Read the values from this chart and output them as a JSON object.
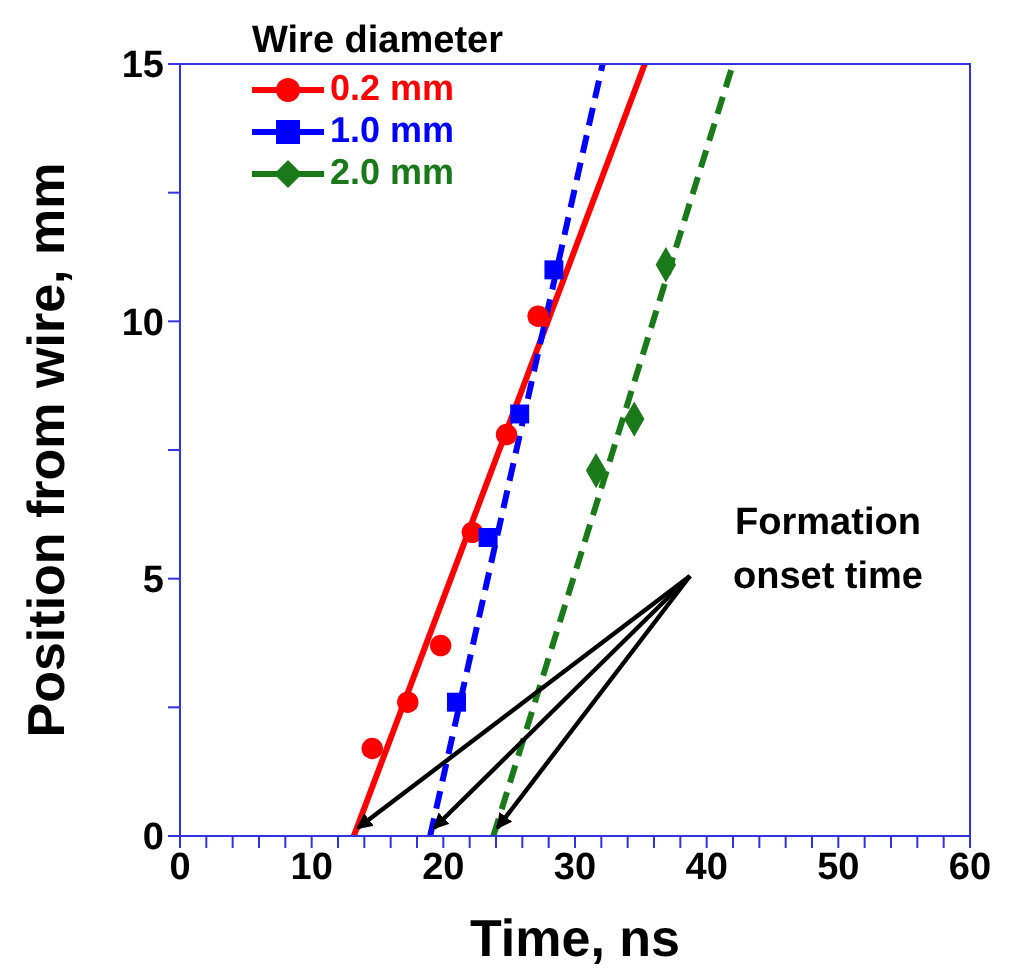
{
  "chart_data": {
    "type": "scatter",
    "xlabel": "Time, ns",
    "ylabel": "Position from wire, mm",
    "legend_title": "Wire diameter",
    "xlim": [
      0,
      60
    ],
    "xticks": [
      0,
      {
        "value": 2,
        "label": null
      },
      {
        "value": 4,
        "label": null
      },
      {
        "value": 6,
        "label": null
      },
      {
        "value": 8,
        "label": null
      },
      10,
      {
        "value": 12,
        "label": null
      },
      {
        "value": 14,
        "label": null
      },
      {
        "value": 16,
        "label": null
      },
      {
        "value": 18,
        "label": null
      },
      20,
      {
        "value": 22,
        "label": null
      },
      {
        "value": 24,
        "label": null
      },
      {
        "value": 26,
        "label": null
      },
      {
        "value": 28,
        "label": null
      },
      30,
      {
        "value": 32,
        "label": null
      },
      {
        "value": 34,
        "label": null
      },
      {
        "value": 36,
        "label": null
      },
      {
        "value": 38,
        "label": null
      },
      40,
      {
        "value": 42,
        "label": null
      },
      {
        "value": 44,
        "label": null
      },
      {
        "value": 46,
        "label": null
      },
      {
        "value": 48,
        "label": null
      },
      50,
      {
        "value": 52,
        "label": null
      },
      {
        "value": 54,
        "label": null
      },
      {
        "value": 56,
        "label": null
      },
      {
        "value": 58,
        "label": null
      },
      60
    ],
    "ylim": [
      0,
      15
    ],
    "yticks": [
      0,
      {
        "value": 2.5,
        "label": null
      },
      5,
      {
        "value": 7.5,
        "label": null
      },
      10,
      {
        "value": 12.5,
        "label": null
      },
      15
    ],
    "legend": "top left",
    "annotations": [
      "Formation onset time"
    ],
    "series": [
      {
        "name": "0.2 mm",
        "color": "#ff0000",
        "marker": "circle",
        "x": [
          14.6,
          17.3,
          19.8,
          22.2,
          24.8,
          27.2
        ],
        "values": [
          1.7,
          2.6,
          3.7,
          5.9,
          7.8,
          10.1
        ]
      },
      {
        "name": "1.0 mm",
        "color": "#0000ff",
        "marker": "square",
        "x": [
          21.0,
          23.4,
          25.8,
          28.4
        ],
        "values": [
          2.6,
          5.8,
          8.2,
          11.0
        ]
      },
      {
        "name": "2.0 mm",
        "color": "#1a7a1a",
        "marker": "diamond",
        "x": [
          31.6,
          34.5,
          36.9
        ],
        "values": [
          7.1,
          8.1,
          11.1
        ]
      },
      {
        "type": "line",
        "color": "#ff0000",
        "line_style": "solid",
        "x": [
          13.2,
          35.3
        ],
        "values": [
          0,
          15
        ]
      },
      {
        "type": "line",
        "color": "#0000ff",
        "line_style": "dashed",
        "x": [
          19.0,
          32.1
        ],
        "values": [
          0,
          15
        ]
      },
      {
        "type": "line",
        "color": "#1a7a1a",
        "line_style": "dashed",
        "x": [
          23.8,
          42.0
        ],
        "values": [
          0,
          15
        ]
      }
    ]
  }
}
